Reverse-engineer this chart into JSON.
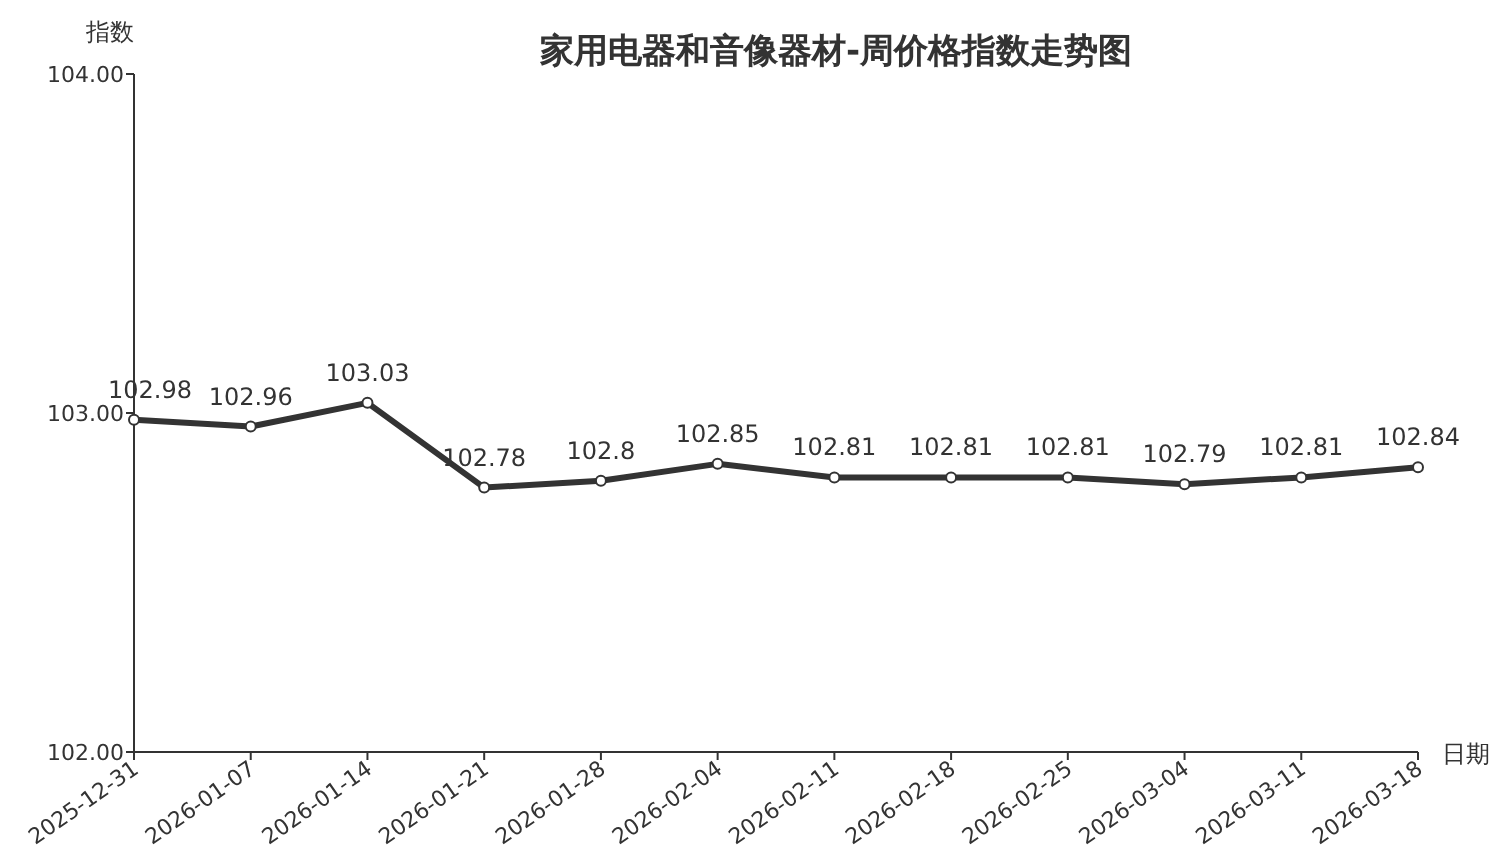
{
  "chart_data": {
    "type": "line",
    "title": "家用电器和音像器材-周价格指数走势图",
    "xlabel": "日期",
    "ylabel": "指数",
    "categories": [
      "2025-12-31",
      "2026-01-07",
      "2026-01-14",
      "2026-01-21",
      "2026-01-28",
      "2026-02-04",
      "2026-02-11",
      "2026-02-18",
      "2026-02-25",
      "2026-03-04",
      "2026-03-11",
      "2026-03-18"
    ],
    "series": [
      {
        "color": "#333333",
        "values": [
          102.98,
          102.96,
          103.03,
          102.78,
          102.8,
          102.85,
          102.81,
          102.81,
          102.81,
          102.79,
          102.81,
          102.84
        ],
        "value_labels": [
          "102.98",
          "102.96",
          "103.03",
          "102.78",
          "102.8",
          "102.85",
          "102.81",
          "102.81",
          "102.81",
          "102.79",
          "102.81",
          "102.84"
        ]
      }
    ],
    "ylim": [
      102,
      104
    ],
    "yticks": [
      {
        "value": 102,
        "label": "102.00"
      },
      {
        "value": 103,
        "label": "103.00"
      },
      {
        "value": 104,
        "label": "104.00"
      }
    ],
    "grid": false,
    "marker": "circle",
    "line_style": "solid"
  }
}
